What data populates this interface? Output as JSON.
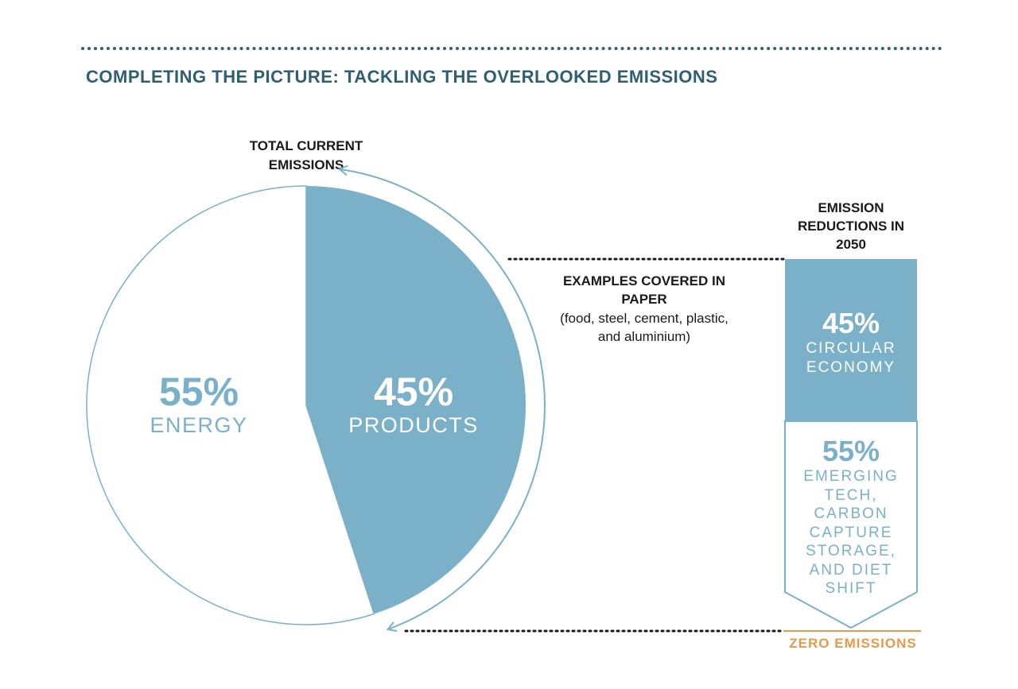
{
  "header": {
    "title": "COMPLETING THE PICTURE: TACKLING THE OVERLOOKED EMISSIONS"
  },
  "chart_data": [
    {
      "type": "pie",
      "title": "TOTAL CURRENT EMISSIONS",
      "slices": [
        {
          "pct_label": "45%",
          "name": "PRODUCTS",
          "value": 45,
          "color": "#7ab1c9"
        },
        {
          "pct_label": "55%",
          "name": "ENERGY",
          "value": 55,
          "color": "#ffffff"
        }
      ]
    },
    {
      "type": "bar",
      "title": "EMISSION REDUCTIONS IN 2050",
      "segments": [
        {
          "pct_label": "45%",
          "name": "CIRCULAR ECONOMY",
          "value": 45,
          "color": "#7ab1c9"
        },
        {
          "pct_label": "55%",
          "name": "EMERGING TECH, CARBON CAPTURE STORAGE, AND DIET SHIFT",
          "value": 55,
          "color": "#ffffff"
        }
      ],
      "end_label": "ZERO EMISSIONS"
    }
  ],
  "annotation": {
    "title": "EXAMPLES COVERED IN PAPER",
    "detail": "(food, steel, cement, plastic, and aluminium)"
  },
  "colors": {
    "heading": "#2f5f72",
    "accent_blue": "#7ab1c9",
    "zero_orange": "#e39a4c"
  }
}
